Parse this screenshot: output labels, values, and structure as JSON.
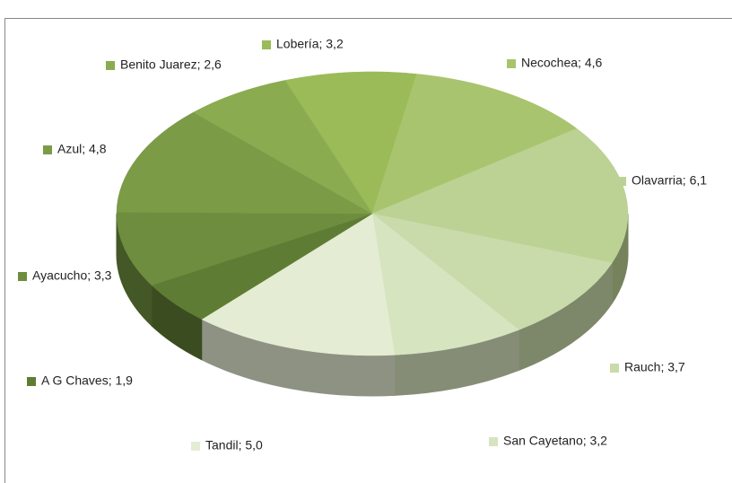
{
  "chart_data": {
    "type": "pie",
    "value_labels": [
      "Lobería; 3,2",
      "Necochea; 4,6",
      "Olavarria; 6,1",
      "Rauch; 3,7",
      "San Cayetano; 3,2",
      "Tandil; 5,0",
      "A G Chaves; 1,9",
      "Ayacucho; 3,3",
      "Azul; 4,8",
      "Benito Juarez; 2,6"
    ],
    "values": [
      3.2,
      4.6,
      6.1,
      3.7,
      3.2,
      5.0,
      1.9,
      3.3,
      4.8,
      2.6
    ],
    "colors": [
      "#9bbb59",
      "#a9c46e",
      "#bcd294",
      "#c9dbab",
      "#d6e4c0",
      "#e4ecd4",
      "#5f7c34",
      "#6e8d3e",
      "#7b9b47",
      "#8aab50"
    ]
  }
}
